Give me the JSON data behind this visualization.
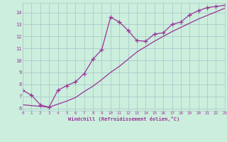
{
  "xlabel": "Windchill (Refroidissement éolien,°C)",
  "background_color": "#cceedd",
  "grid_color": "#aacccc",
  "line_color": "#993399",
  "spine_color": "#aaaaaa",
  "xlim": [
    0,
    23
  ],
  "ylim": [
    5.8,
    14.8
  ],
  "xticks": [
    0,
    1,
    2,
    3,
    4,
    5,
    6,
    7,
    8,
    9,
    10,
    11,
    12,
    13,
    14,
    15,
    16,
    17,
    18,
    19,
    20,
    21,
    22,
    23
  ],
  "yticks": [
    6,
    7,
    8,
    9,
    10,
    11,
    12,
    13,
    14
  ],
  "series1_x": [
    0,
    1,
    2,
    3,
    4,
    5,
    6,
    7,
    8,
    9,
    10,
    11,
    12,
    13,
    14,
    15,
    16,
    17,
    18,
    19,
    20,
    21,
    22,
    23
  ],
  "series1_y": [
    7.5,
    7.1,
    6.3,
    6.1,
    7.5,
    7.9,
    8.2,
    8.9,
    10.1,
    10.9,
    13.6,
    13.2,
    12.5,
    11.65,
    11.6,
    12.2,
    12.3,
    13.0,
    13.2,
    13.8,
    14.15,
    14.4,
    14.5,
    14.6
  ],
  "series2_x": [
    0,
    3,
    4,
    5,
    6,
    7,
    8,
    9,
    10,
    11,
    12,
    13,
    14,
    15,
    16,
    17,
    18,
    19,
    20,
    21,
    22,
    23
  ],
  "series2_y": [
    6.3,
    6.1,
    6.35,
    6.6,
    6.9,
    7.4,
    7.85,
    8.4,
    9.0,
    9.5,
    10.1,
    10.7,
    11.15,
    11.6,
    12.0,
    12.4,
    12.75,
    13.1,
    13.45,
    13.75,
    14.05,
    14.35
  ]
}
